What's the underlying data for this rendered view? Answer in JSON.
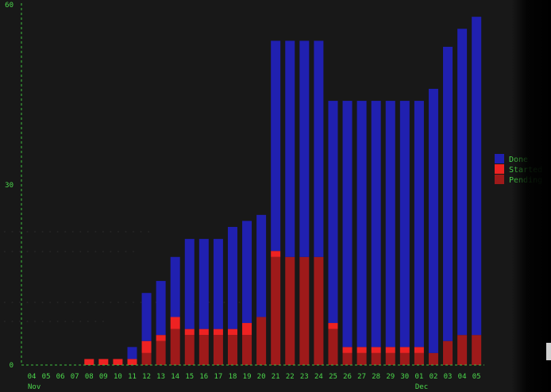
{
  "chart_data": {
    "type": "bar",
    "stacked": true,
    "title": "",
    "xlabel": "",
    "ylabel": "",
    "ylim": [
      0,
      60
    ],
    "y_ticks": [
      "0",
      "30",
      "60"
    ],
    "grid": false,
    "legend_position": "right",
    "categories": [
      "04",
      "05",
      "06",
      "07",
      "08",
      "09",
      "10",
      "11",
      "12",
      "13",
      "14",
      "15",
      "16",
      "17",
      "18",
      "19",
      "20",
      "21",
      "22",
      "23",
      "24",
      "25",
      "26",
      "27",
      "28",
      "29",
      "30",
      "01",
      "02",
      "03",
      "04",
      "05"
    ],
    "month_labels": [
      {
        "category_index": 0,
        "label": "Nov"
      },
      {
        "category_index": 27,
        "label": "Dec"
      }
    ],
    "series": [
      {
        "name": "Pending",
        "color": "#9e1a1a",
        "values": [
          0,
          0,
          0,
          0,
          0,
          0,
          0,
          0,
          2,
          4,
          6,
          5,
          5,
          5,
          5,
          5,
          8,
          18,
          18,
          18,
          18,
          6,
          2,
          2,
          2,
          2,
          2,
          2,
          2,
          4,
          5,
          5
        ]
      },
      {
        "name": "Started",
        "color": "#ee2222",
        "values": [
          0,
          0,
          0,
          0,
          1,
          1,
          1,
          1,
          2,
          1,
          2,
          1,
          1,
          1,
          1,
          2,
          0,
          1,
          0,
          0,
          0,
          1,
          1,
          1,
          1,
          1,
          1,
          1,
          0,
          0,
          0,
          0
        ]
      },
      {
        "name": "Done",
        "color": "#2020b0",
        "values": [
          0,
          0,
          0,
          0,
          0,
          0,
          0,
          2,
          8,
          9,
          10,
          15,
          15,
          15,
          17,
          17,
          17,
          35,
          36,
          36,
          36,
          37,
          41,
          41,
          41,
          41,
          41,
          41,
          44,
          49,
          51,
          53
        ]
      }
    ],
    "legend_order": [
      "Done",
      "Started",
      "Pending"
    ]
  }
}
